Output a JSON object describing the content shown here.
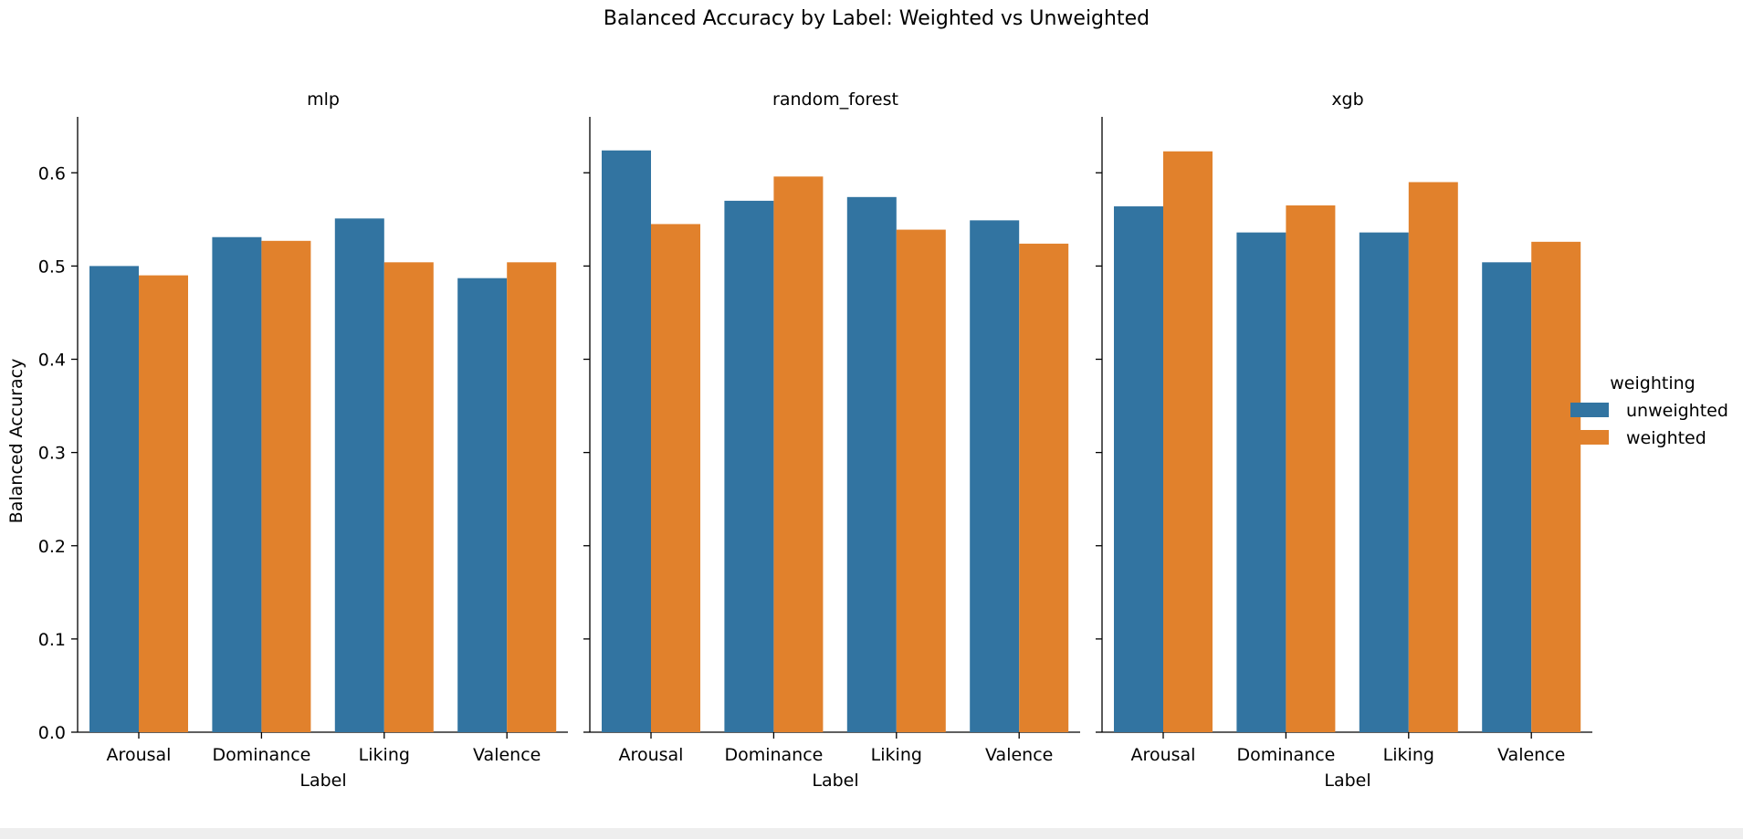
{
  "chart_data": {
    "type": "bar",
    "title": "Balanced Accuracy by Label: Weighted vs Unweighted",
    "ylabel": "Balanced Accuracy",
    "xlabel": "Label",
    "ylim": [
      0,
      0.66
    ],
    "yticks": [
      "0.0",
      "0.1",
      "0.2",
      "0.3",
      "0.4",
      "0.5",
      "0.6"
    ],
    "categories": [
      "Arousal",
      "Dominance",
      "Liking",
      "Valence"
    ],
    "legend": {
      "title": "weighting",
      "position": "right",
      "entries": [
        {
          "name": "unweighted",
          "color": "#3274a1"
        },
        {
          "name": "weighted",
          "color": "#e1812c"
        }
      ]
    },
    "panels": [
      {
        "name": "mlp",
        "series": [
          {
            "name": "unweighted",
            "values": [
              0.5,
              0.531,
              0.551,
              0.487
            ]
          },
          {
            "name": "weighted",
            "values": [
              0.49,
              0.527,
              0.504,
              0.504
            ]
          }
        ]
      },
      {
        "name": "random_forest",
        "series": [
          {
            "name": "unweighted",
            "values": [
              0.624,
              0.57,
              0.574,
              0.549
            ]
          },
          {
            "name": "weighted",
            "values": [
              0.545,
              0.596,
              0.539,
              0.524
            ]
          }
        ]
      },
      {
        "name": "xgb",
        "series": [
          {
            "name": "unweighted",
            "values": [
              0.564,
              0.536,
              0.536,
              0.504
            ]
          },
          {
            "name": "weighted",
            "values": [
              0.623,
              0.565,
              0.59,
              0.526
            ]
          }
        ]
      }
    ]
  }
}
